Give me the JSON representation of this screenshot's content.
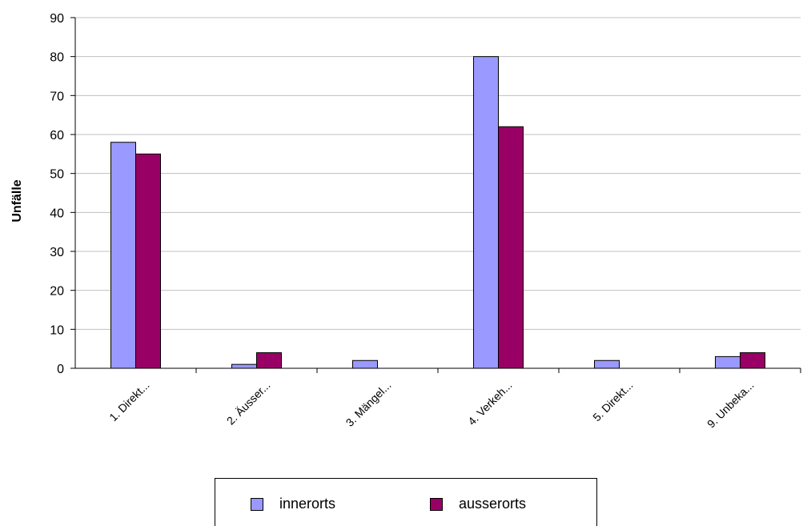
{
  "chart_data": {
    "type": "bar",
    "categories": [
      "1. Direkt...",
      "2. Äusser...",
      "3. Mängel...",
      "4. Verkeh...",
      "5. Direkt...",
      "9. Unbeka..."
    ],
    "series": [
      {
        "name": "innerorts",
        "values": [
          58,
          1,
          2,
          80,
          2,
          3
        ],
        "color": "#9999ff"
      },
      {
        "name": "ausserorts",
        "values": [
          55,
          4,
          0,
          62,
          0,
          4
        ],
        "color": "#990066"
      }
    ],
    "ylabel": "Unfälle",
    "xlabel": "",
    "ylim": [
      0,
      90
    ],
    "yticks": [
      "0",
      "10",
      "20",
      "30",
      "40",
      "50",
      "60",
      "70",
      "80",
      "90"
    ],
    "grid": true,
    "legend_position": "bottom"
  }
}
